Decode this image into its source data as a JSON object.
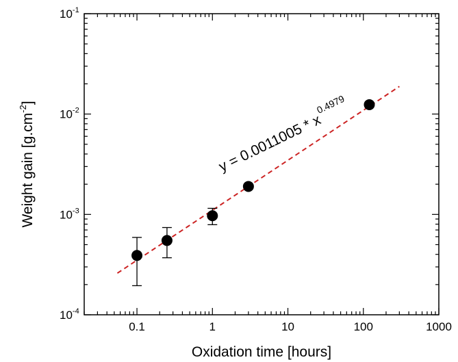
{
  "chart_data": {
    "type": "scatter",
    "xlabel": "Oxidation time [hours]",
    "ylabel": "Weight gain [g.cm",
    "ylabel_sup": "-2",
    "ylabel_end": "]",
    "x_scale": "log",
    "y_scale": "log",
    "xlim": [
      0.02,
      1000
    ],
    "ylim": [
      0.0001,
      0.1
    ],
    "x_ticks": [
      {
        "value": 0.1,
        "label": "0.1"
      },
      {
        "value": 1,
        "label": "1"
      },
      {
        "value": 10,
        "label": "10"
      },
      {
        "value": 100,
        "label": "100"
      },
      {
        "value": 1000,
        "label": "1000"
      }
    ],
    "y_ticks": [
      {
        "value": 0.0001,
        "base": "10",
        "exp": "-4"
      },
      {
        "value": 0.001,
        "base": "10",
        "exp": "-3"
      },
      {
        "value": 0.01,
        "base": "10",
        "exp": "-2"
      },
      {
        "value": 0.1,
        "base": "10",
        "exp": "-1"
      }
    ],
    "grid": false,
    "points": [
      {
        "x": 0.1,
        "y": 0.00039,
        "err_low": 0.000195,
        "err_high": 0.00059
      },
      {
        "x": 0.25,
        "y": 0.00055,
        "err_low": 0.00037,
        "err_high": 0.00074
      },
      {
        "x": 1,
        "y": 0.00097,
        "err_low": 0.00079,
        "err_high": 0.00115
      },
      {
        "x": 3,
        "y": 0.0019
      },
      {
        "x": 120,
        "y": 0.0124
      }
    ],
    "fit": {
      "coefficient": 0.0011005,
      "exponent": 0.4979,
      "x_range": [
        0.055,
        300
      ],
      "color": "#cc2222",
      "style": "dashed",
      "label_main": "y = 0.0011005 * x",
      "label_sup": "0.4979"
    },
    "marker_color": "#000000"
  }
}
